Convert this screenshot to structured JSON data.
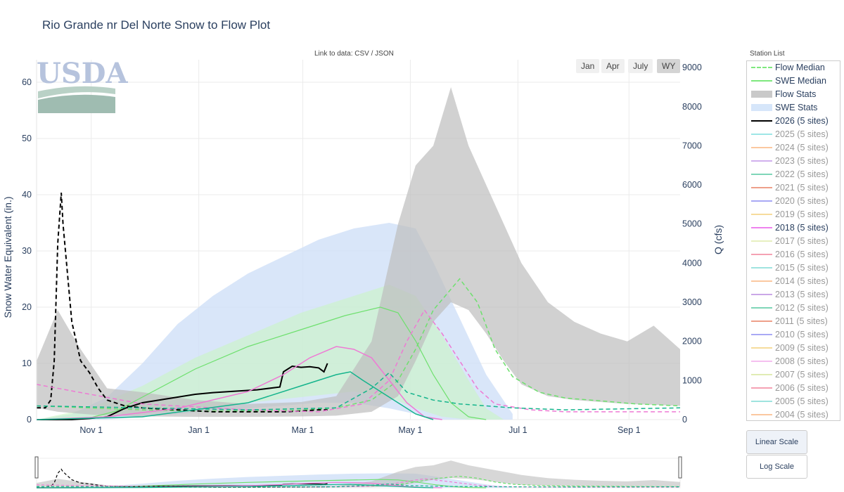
{
  "title": "Rio Grande nr Del Norte Snow to Flow Plot",
  "link_row": {
    "prefix": "Link to data: ",
    "csv": "CSV",
    "sep": " / ",
    "json": "JSON"
  },
  "range_buttons": [
    {
      "label": "Jan",
      "active": false
    },
    {
      "label": "Apr",
      "active": false
    },
    {
      "label": "July",
      "active": false
    },
    {
      "label": "WY",
      "active": true
    }
  ],
  "logo_text": "USDA",
  "station_list_title": "Station List",
  "legend": [
    {
      "label": "Flow Median",
      "color": "#7ee87e",
      "style": "dash",
      "muted": false
    },
    {
      "label": "SWE Median",
      "color": "#7ee87e",
      "style": "solid",
      "muted": false
    },
    {
      "label": "Flow Stats",
      "color": "#c9c9c9",
      "style": "band",
      "muted": false
    },
    {
      "label": "SWE Stats",
      "color": "#d6e6fa",
      "style": "band",
      "muted": false
    },
    {
      "label": "2026 (5 sites)",
      "color": "#000000",
      "style": "solid",
      "muted": false
    },
    {
      "label": "2025 (5 sites)",
      "color": "#9ee6e6",
      "style": "solid",
      "muted": true
    },
    {
      "label": "2024 (5 sites)",
      "color": "#fbc8a0",
      "style": "solid",
      "muted": true
    },
    {
      "label": "2023 (5 sites)",
      "color": "#d1b0ee",
      "style": "solid",
      "muted": true
    },
    {
      "label": "2022 (5 sites)",
      "color": "#7fd6b8",
      "style": "solid",
      "muted": true
    },
    {
      "label": "2021 (5 sites)",
      "color": "#eea08a",
      "style": "solid",
      "muted": true
    },
    {
      "label": "2020 (5 sites)",
      "color": "#a9a9f5",
      "style": "solid",
      "muted": true
    },
    {
      "label": "2019 (5 sites)",
      "color": "#f6dc9c",
      "style": "solid",
      "muted": true
    },
    {
      "label": "2018 (5 sites)",
      "color": "#ee82ee",
      "style": "solid",
      "muted": false
    },
    {
      "label": "2017 (5 sites)",
      "color": "#e7efc0",
      "style": "solid",
      "muted": true
    },
    {
      "label": "2016 (5 sites)",
      "color": "#f5a2b4",
      "style": "solid",
      "muted": true
    },
    {
      "label": "2015 (5 sites)",
      "color": "#9fe4df",
      "style": "solid",
      "muted": true
    },
    {
      "label": "2014 (5 sites)",
      "color": "#fbc8a0",
      "style": "solid",
      "muted": true
    },
    {
      "label": "2013 (5 sites)",
      "color": "#caa8e8",
      "style": "solid",
      "muted": true
    },
    {
      "label": "2012 (5 sites)",
      "color": "#7fd6b8",
      "style": "solid",
      "muted": true
    },
    {
      "label": "2011 (5 sites)",
      "color": "#eea08a",
      "style": "solid",
      "muted": true
    },
    {
      "label": "2010 (5 sites)",
      "color": "#a9a9f5",
      "style": "solid",
      "muted": true
    },
    {
      "label": "2009 (5 sites)",
      "color": "#f6dc9c",
      "style": "solid",
      "muted": true
    },
    {
      "label": "2008 (5 sites)",
      "color": "#f5c0f0",
      "style": "solid",
      "muted": true
    },
    {
      "label": "2007 (5 sites)",
      "color": "#e0ecb4",
      "style": "solid",
      "muted": true
    },
    {
      "label": "2006 (5 sites)",
      "color": "#f5a2b4",
      "style": "solid",
      "muted": true
    },
    {
      "label": "2005 (5 sites)",
      "color": "#9fe4df",
      "style": "solid",
      "muted": true
    },
    {
      "label": "2004 (5 sites)",
      "color": "#fbc8a0",
      "style": "solid",
      "muted": true
    }
  ],
  "scale_buttons": {
    "linear": "Linear Scale",
    "log": "Log Scale"
  },
  "chart_data": {
    "type": "line",
    "x_unit": "day of water year (Oct 1 = 0)",
    "x_range": [
      0,
      365
    ],
    "x_tick_labels": [
      "Nov 1",
      "Jan 1",
      "Mar 1",
      "May 1",
      "Jul 1",
      "Sep 1"
    ],
    "x_tick_days": [
      31,
      92,
      151,
      212,
      273,
      336
    ],
    "y_left": {
      "label": "Snow Water Equivalent (in.)",
      "range": [
        0,
        64
      ],
      "ticks": [
        0,
        10,
        20,
        30,
        40,
        50,
        60
      ]
    },
    "y_right": {
      "label": "Q (cfs)",
      "range": [
        0,
        9200
      ],
      "ticks": [
        0,
        1000,
        2000,
        3000,
        4000,
        5000,
        6000,
        7000,
        8000,
        9000
      ]
    },
    "grid": true,
    "legend_position": "right",
    "swe_stats_band": {
      "x": [
        0,
        20,
        40,
        60,
        80,
        100,
        120,
        140,
        160,
        180,
        200,
        215,
        225,
        240,
        255,
        270
      ],
      "low": [
        0,
        0,
        0,
        0.5,
        1,
        1.5,
        2,
        2.5,
        3,
        3,
        2,
        1,
        0,
        0,
        0,
        0
      ],
      "high": [
        0,
        1,
        4,
        10,
        17,
        22,
        26,
        29,
        32,
        34,
        35,
        34,
        28,
        18,
        8,
        1
      ]
    },
    "swe_inner_band": {
      "x": [
        0,
        30,
        60,
        90,
        120,
        150,
        180,
        200,
        215,
        230,
        245,
        255,
        265
      ],
      "low": [
        0,
        0.3,
        1,
        2,
        3,
        4,
        5,
        4,
        2,
        0.5,
        0,
        0,
        0
      ],
      "high": [
        0,
        2,
        6,
        11,
        15,
        19,
        22,
        24,
        22,
        15,
        7,
        2,
        0
      ]
    },
    "flow_stats_band": {
      "x": [
        0,
        12,
        25,
        40,
        60,
        90,
        120,
        150,
        170,
        190,
        205,
        215,
        225,
        235,
        245,
        255,
        265,
        275,
        290,
        305,
        320,
        335,
        350,
        365
      ],
      "low": [
        300,
        200,
        150,
        100,
        80,
        70,
        70,
        80,
        100,
        200,
        600,
        1500,
        2500,
        3000,
        2800,
        2200,
        1500,
        900,
        600,
        500,
        450,
        400,
        380,
        350
      ],
      "high": [
        1500,
        2800,
        1800,
        800,
        700,
        500,
        400,
        450,
        600,
        2000,
        5000,
        6500,
        7000,
        8500,
        7000,
        6000,
        5000,
        4000,
        3000,
        2500,
        2200,
        2000,
        2400,
        1800
      ]
    },
    "series": [
      {
        "name": "SWE Median",
        "axis": "left",
        "color": "#6ee06e",
        "dash": false,
        "width": 1.2,
        "x": [
          0,
          30,
          45,
          60,
          90,
          120,
          150,
          175,
          195,
          205,
          215,
          225,
          235,
          245,
          255
        ],
        "y": [
          0,
          0.3,
          1.5,
          4,
          9,
          13,
          16,
          18.5,
          20,
          19,
          14,
          8,
          3,
          0.5,
          0
        ]
      },
      {
        "name": "Flow Median",
        "axis": "right",
        "color": "#6ee06e",
        "dash": true,
        "width": 1.5,
        "x": [
          0,
          30,
          60,
          90,
          120,
          150,
          170,
          190,
          205,
          215,
          225,
          240,
          250,
          260,
          270,
          285,
          300,
          320,
          340,
          365
        ],
        "y": [
          350,
          300,
          250,
          220,
          220,
          240,
          300,
          500,
          1000,
          1800,
          2800,
          3600,
          3000,
          1800,
          1100,
          700,
          550,
          480,
          400,
          350
        ]
      },
      {
        "name": "2026 (5 sites)",
        "axis": "left",
        "color": "#000000",
        "dash": false,
        "width": 2,
        "x": [
          0,
          20,
          30,
          40,
          50,
          60,
          70,
          80,
          90,
          100,
          110,
          125,
          138,
          140,
          145,
          150,
          155,
          160,
          163,
          165
        ],
        "y": [
          0,
          0,
          0.2,
          0.5,
          2,
          3,
          3.5,
          4,
          4.5,
          4.8,
          5,
          5.3,
          5.8,
          8.5,
          9.5,
          9.3,
          9.4,
          9.2,
          8.5,
          10
        ]
      },
      {
        "name": "2026 (5 sites)",
        "axis": "right",
        "color": "#000000",
        "dash": true,
        "width": 2,
        "x": [
          0,
          5,
          8,
          10,
          12,
          14,
          15,
          17,
          20,
          25,
          30,
          35,
          40,
          50,
          60,
          80,
          100,
          120,
          140,
          150,
          160,
          165
        ],
        "y": [
          300,
          300,
          500,
          1500,
          4500,
          5800,
          5000,
          4000,
          2500,
          1500,
          1200,
          800,
          500,
          350,
          300,
          250,
          200,
          200,
          200,
          220,
          250,
          250
        ]
      },
      {
        "name": "2018 (5 sites)",
        "axis": "left",
        "color": "#ee7ad4",
        "dash": false,
        "width": 1.5,
        "x": [
          0,
          40,
          80,
          120,
          140,
          155,
          170,
          180,
          190,
          200,
          210,
          220,
          230
        ],
        "y": [
          0,
          0.5,
          2,
          5,
          8,
          11,
          13,
          12.5,
          11,
          7,
          3,
          0.5,
          0
        ]
      },
      {
        "name": "2018 (5 sites)",
        "axis": "right",
        "color": "#ee7ad4",
        "dash": true,
        "width": 1.5,
        "x": [
          0,
          60,
          120,
          160,
          185,
          200,
          210,
          220,
          230,
          240,
          250,
          260,
          280,
          300,
          365
        ],
        "y": [
          900,
          400,
          250,
          200,
          400,
          1000,
          2000,
          2800,
          2200,
          1500,
          800,
          400,
          250,
          200,
          200
        ]
      },
      {
        "name": "2012 (5 sites)",
        "axis": "left",
        "color": "#14b48c",
        "dash": false,
        "width": 1.5,
        "x": [
          0,
          60,
          120,
          150,
          170,
          178,
          185,
          195,
          205,
          215,
          225
        ],
        "y": [
          0,
          0.5,
          3,
          6,
          8,
          8.5,
          7,
          5,
          3,
          1,
          0
        ]
      },
      {
        "name": "2012 (5 sites)",
        "axis": "right",
        "color": "#14b48c",
        "dash": true,
        "width": 1.5,
        "x": [
          0,
          60,
          120,
          170,
          190,
          200,
          210,
          225,
          240,
          270,
          300,
          365
        ],
        "y": [
          350,
          300,
          250,
          300,
          800,
          1200,
          700,
          500,
          400,
          300,
          250,
          300
        ]
      }
    ]
  }
}
